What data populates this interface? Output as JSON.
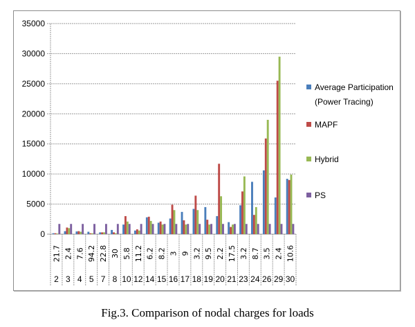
{
  "caption": "Fig.3. Comparison of nodal charges for loads",
  "chart_data": {
    "type": "bar",
    "title": "",
    "xlabel": "",
    "ylabel": "",
    "ylim": [
      0,
      35000
    ],
    "yticks": [
      "0",
      "5000",
      "10000",
      "15000",
      "20000",
      "25000",
      "30000",
      "35000"
    ],
    "grid": true,
    "legend_position": "right",
    "categories": [
      "2",
      "3",
      "4",
      "5",
      "7",
      "8",
      "10",
      "12",
      "14",
      "15",
      "16",
      "17",
      "18",
      "19",
      "20",
      "21",
      "23",
      "24",
      "26",
      "29",
      "30"
    ],
    "category_labels_top": [
      "21.7",
      "2.4",
      "7.6",
      "94.2",
      "22.8",
      "30",
      "5.8",
      "11.2",
      "6.2",
      "8.2",
      "3",
      "9",
      "3.2",
      "9.5",
      "2.2",
      "17.5",
      "3.2",
      "8.7",
      "3.5",
      "2.4",
      "10.6"
    ],
    "series": [
      {
        "name": "Average Participation (Power Tracing)",
        "color": "#4a7ebb",
        "values": [
          150,
          500,
          450,
          400,
          300,
          700,
          1600,
          600,
          2800,
          1900,
          2600,
          3700,
          4200,
          4500,
          3000,
          2000,
          4800,
          8700,
          10600,
          6100,
          9200
        ]
      },
      {
        "name": "MAPF",
        "color": "#be4b48",
        "values": [
          150,
          1100,
          500,
          150,
          300,
          300,
          3000,
          800,
          2900,
          2100,
          4900,
          2300,
          6400,
          2400,
          11700,
          1200,
          7100,
          3200,
          15900,
          25500,
          9000
        ]
      },
      {
        "name": "Hybrid",
        "color": "#98b954",
        "values": [
          100,
          1000,
          400,
          150,
          300,
          150,
          2100,
          600,
          2200,
          1600,
          4000,
          1600,
          4000,
          1600,
          6300,
          1600,
          9600,
          4500,
          19000,
          29500,
          9900
        ]
      },
      {
        "name": "PS",
        "color": "#7d60a0",
        "values": [
          1700,
          1700,
          1700,
          1700,
          1700,
          1700,
          1700,
          1700,
          1700,
          1700,
          1700,
          1700,
          1700,
          1700,
          1700,
          1700,
          1700,
          1700,
          1700,
          1700,
          1700
        ]
      }
    ]
  }
}
